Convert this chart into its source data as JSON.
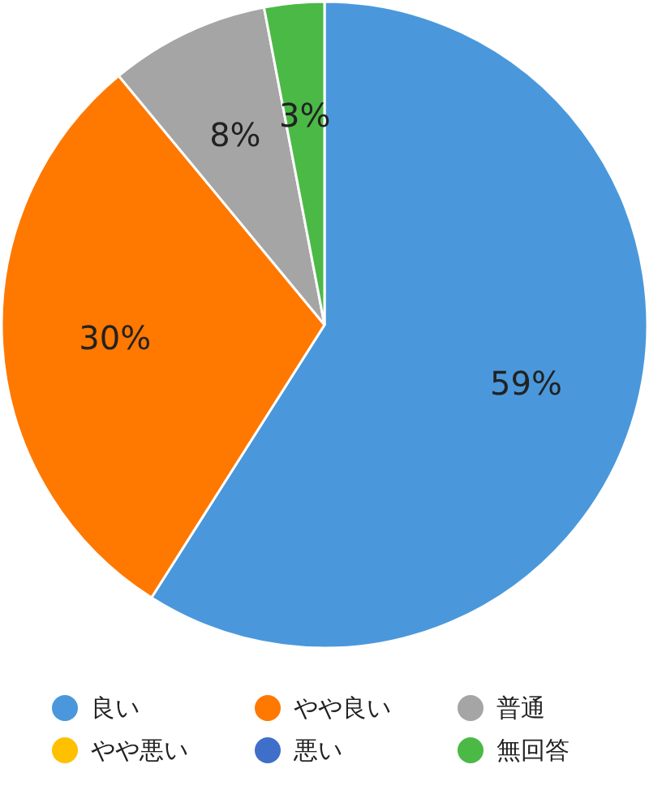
{
  "chart_data": {
    "type": "pie",
    "categories": [
      "良い",
      "やや良い",
      "普通",
      "やや悪い",
      "悪い",
      "無回答"
    ],
    "values": [
      59,
      30,
      8,
      0,
      0,
      3
    ],
    "colors": [
      "#4a98db",
      "#ff7800",
      "#a5a5a5",
      "#ffc000",
      "#3f6fc9",
      "#4bb946"
    ],
    "value_labels": [
      "59%",
      "30%",
      "8%",
      null,
      null,
      "3%"
    ],
    "legend": "bottom"
  }
}
